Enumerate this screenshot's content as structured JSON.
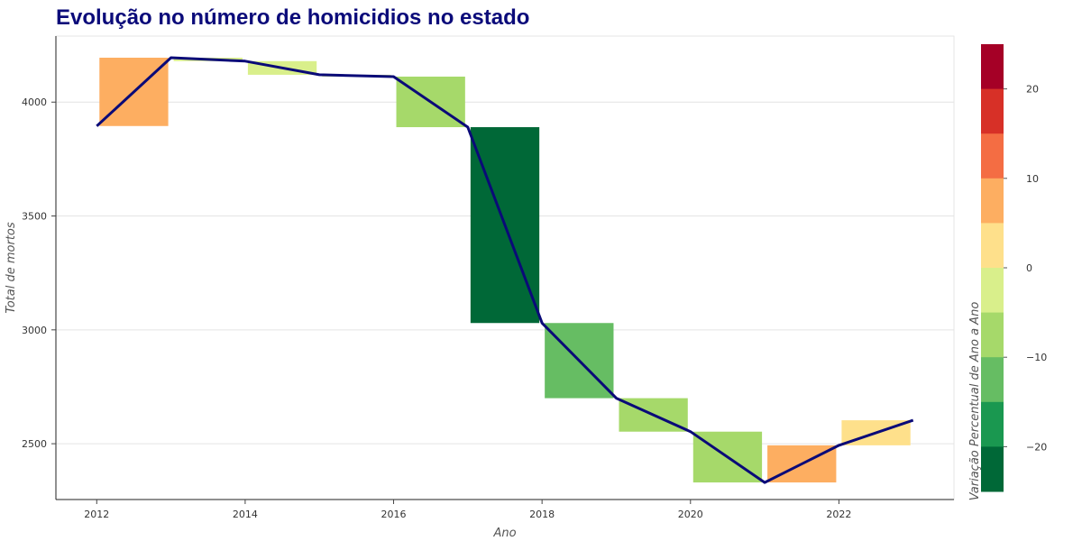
{
  "chart_data": {
    "type": "waterfall",
    "title": "Evolução no número de homicidios no estado",
    "xlabel": "Ano",
    "ylabel": "Total de mortos",
    "xlim": [
      2011.45,
      2023.55
    ],
    "ylim": [
      2255,
      4290
    ],
    "x_ticks": [
      2012,
      2014,
      2016,
      2018,
      2020,
      2022
    ],
    "x_tick_labels": [
      "2012",
      "2014",
      "2016",
      "2018",
      "2020",
      "2022"
    ],
    "y_ticks": [
      2500,
      3000,
      3500,
      4000
    ],
    "y_tick_labels": [
      "2500",
      "3000",
      "3500",
      "4000"
    ],
    "grid": "horizontal",
    "line": {
      "color": "#0a0a78",
      "x": [
        2012,
        2013,
        2014,
        2015,
        2016,
        2017,
        2018,
        2019,
        2020,
        2021,
        2022,
        2023
      ],
      "y": [
        3895,
        4195,
        4180,
        4120,
        4112,
        3890,
        3030,
        2700,
        2553,
        2330,
        2493,
        2603
      ]
    },
    "bars": [
      {
        "x_start": 2012,
        "x_end": 2013,
        "from": 3895,
        "to": 4195,
        "pct_change": 7.7
      },
      {
        "x_start": 2013,
        "x_end": 2014,
        "from": 4195,
        "to": 4180,
        "pct_change": -0.4
      },
      {
        "x_start": 2014,
        "x_end": 2015,
        "from": 4180,
        "to": 4120,
        "pct_change": -1.4
      },
      {
        "x_start": 2015,
        "x_end": 2016,
        "from": 4120,
        "to": 4112,
        "pct_change": -0.2
      },
      {
        "x_start": 2016,
        "x_end": 2017,
        "from": 4112,
        "to": 3890,
        "pct_change": -5.4
      },
      {
        "x_start": 2017,
        "x_end": 2018,
        "from": 3890,
        "to": 3030,
        "pct_change": -22.1
      },
      {
        "x_start": 2018,
        "x_end": 2019,
        "from": 3030,
        "to": 2700,
        "pct_change": -10.9
      },
      {
        "x_start": 2019,
        "x_end": 2020,
        "from": 2700,
        "to": 2553,
        "pct_change": -5.4
      },
      {
        "x_start": 2020,
        "x_end": 2021,
        "from": 2553,
        "to": 2330,
        "pct_change": -8.7
      },
      {
        "x_start": 2021,
        "x_end": 2022,
        "from": 2330,
        "to": 2493,
        "pct_change": 7.0
      },
      {
        "x_start": 2022,
        "x_end": 2023,
        "from": 2493,
        "to": 2603,
        "pct_change": 4.4
      }
    ],
    "colorbar": {
      "title": "Variação Percentual de Ano a Ano",
      "range": [
        -25,
        25
      ],
      "ticks": [
        20,
        10,
        0,
        -10,
        -20
      ],
      "tick_labels": [
        "20",
        "10",
        "0",
        "−10",
        "−20"
      ],
      "colors": [
        "#a50026",
        "#d73027",
        "#f46d43",
        "#fdae61",
        "#fee08b",
        "#d9ef8b",
        "#a6d96a",
        "#66bd63",
        "#1a9850",
        "#006837"
      ]
    }
  }
}
